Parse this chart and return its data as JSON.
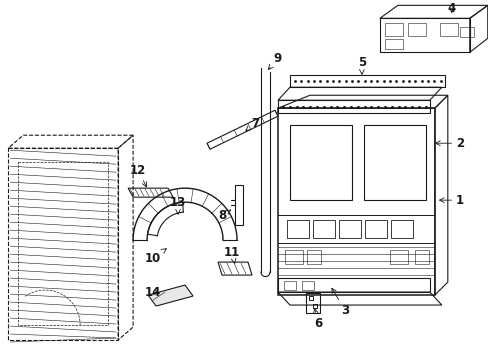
{
  "bg_color": "#ffffff",
  "line_color": "#1a1a1a",
  "fig_width": 4.89,
  "fig_height": 3.6,
  "dpi": 100,
  "lw_main": 0.8,
  "lw_thin": 0.4,
  "label_fontsize": 8.5
}
